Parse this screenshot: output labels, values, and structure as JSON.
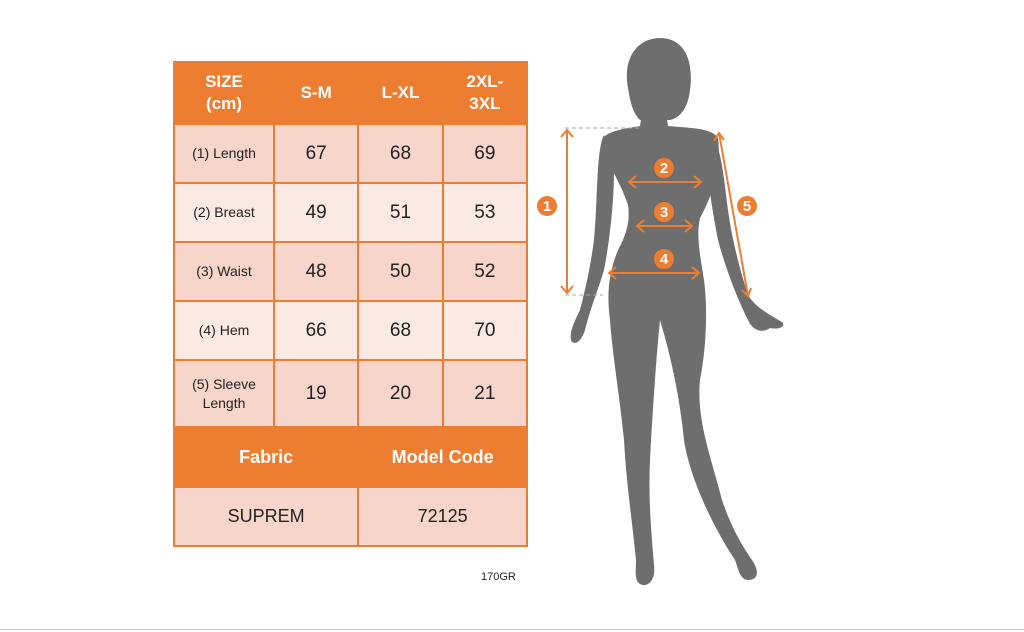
{
  "table": {
    "header": [
      "SIZE\n(cm)",
      "S-M",
      "L-XL",
      "2XL-\n3XL"
    ],
    "header_lines": [
      [
        "SIZE",
        "(cm)"
      ],
      [
        "S-M"
      ],
      [
        "L-XL"
      ],
      [
        "2XL-",
        "3XL"
      ]
    ],
    "rows": [
      {
        "label": "(1) Length",
        "values": [
          "67",
          "68",
          "69"
        ]
      },
      {
        "label": "(2) Breast",
        "values": [
          "49",
          "51",
          "53"
        ]
      },
      {
        "label": "(3) Waist",
        "values": [
          "48",
          "50",
          "52"
        ]
      },
      {
        "label": "(4) Hem",
        "values": [
          "66",
          "68",
          "70"
        ]
      },
      {
        "label_lines": [
          "(5) Sleeve",
          "Length"
        ],
        "values": [
          "19",
          "20",
          "21"
        ]
      }
    ],
    "fabric_header": "Fabric",
    "model_code_header": "Model Code",
    "fabric": "SUPREM",
    "model_code": "72125",
    "note": "170GR"
  },
  "figure": {
    "markers": [
      "1",
      "2",
      "3",
      "4",
      "5"
    ],
    "silhouette_color": "#6E6E6E",
    "accent_color": "#ED7D31"
  }
}
